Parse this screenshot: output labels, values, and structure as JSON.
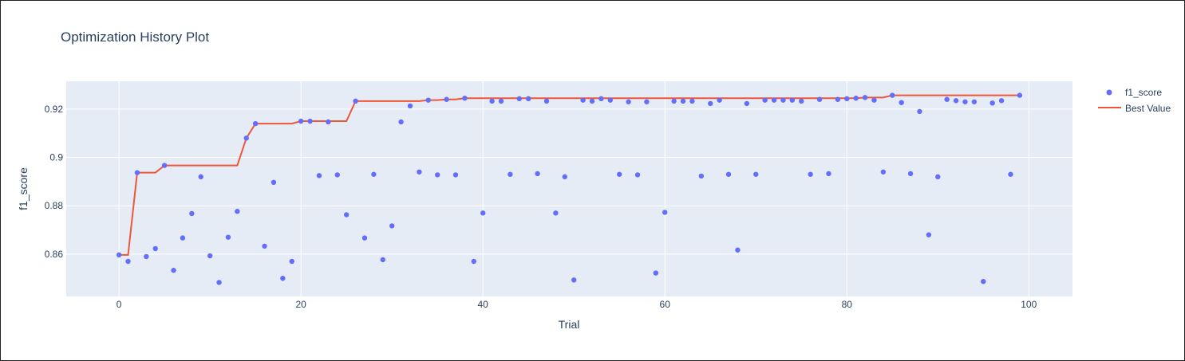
{
  "chart_data": {
    "type": "scatter",
    "title": "Optimization History Plot",
    "xlabel": "Trial",
    "ylabel": "f1_score",
    "xlim": [
      -5.8,
      104.8
    ],
    "ylim": [
      0.8425,
      0.9315
    ],
    "xticks": [
      0,
      20,
      40,
      60,
      80,
      100
    ],
    "yticks": [
      0.86,
      0.88,
      0.9,
      0.92
    ],
    "ytick_labels": [
      "0.86",
      "0.88",
      "0.9",
      "0.92"
    ],
    "grid": true,
    "legend_position": "top-right",
    "colors": {
      "scatter": "#636efa",
      "line": "#ef553b",
      "plot_bg": "#e5ecf6"
    },
    "series": [
      {
        "name": "f1_score",
        "kind": "markers",
        "x": [
          0,
          1,
          2,
          3,
          4,
          5,
          6,
          7,
          8,
          9,
          10,
          11,
          12,
          13,
          14,
          15,
          16,
          17,
          18,
          19,
          20,
          21,
          22,
          23,
          24,
          25,
          26,
          27,
          28,
          29,
          30,
          31,
          32,
          33,
          34,
          35,
          36,
          37,
          38,
          39,
          40,
          41,
          42,
          43,
          44,
          45,
          46,
          47,
          48,
          49,
          50,
          51,
          52,
          53,
          54,
          55,
          56,
          57,
          58,
          59,
          60,
          61,
          62,
          63,
          64,
          65,
          66,
          67,
          68,
          69,
          70,
          71,
          72,
          73,
          74,
          75,
          76,
          77,
          78,
          79,
          80,
          81,
          82,
          83,
          84,
          85,
          86,
          87,
          88,
          89,
          90,
          91,
          92,
          93,
          94,
          95,
          96,
          97,
          98,
          99
        ],
        "y": [
          0.8597,
          0.857,
          0.8937,
          0.859,
          0.8623,
          0.8967,
          0.8533,
          0.8667,
          0.8768,
          0.892,
          0.8593,
          0.8483,
          0.867,
          0.8777,
          0.908,
          0.914,
          0.8633,
          0.8897,
          0.85,
          0.857,
          0.915,
          0.915,
          0.8925,
          0.9147,
          0.8928,
          0.8763,
          0.9233,
          0.8667,
          0.893,
          0.8577,
          0.8717,
          0.9147,
          0.9213,
          0.894,
          0.9237,
          0.8928,
          0.924,
          0.8928,
          0.9245,
          0.857,
          0.877,
          0.9233,
          0.9233,
          0.893,
          0.9243,
          0.9243,
          0.8933,
          0.9233,
          0.877,
          0.892,
          0.8493,
          0.9237,
          0.9233,
          0.9243,
          0.9237,
          0.893,
          0.923,
          0.8928,
          0.923,
          0.8522,
          0.8773,
          0.9233,
          0.9233,
          0.9233,
          0.8923,
          0.9223,
          0.9237,
          0.893,
          0.8617,
          0.9223,
          0.893,
          0.9237,
          0.9237,
          0.9237,
          0.9237,
          0.9233,
          0.893,
          0.924,
          0.8933,
          0.924,
          0.9243,
          0.9245,
          0.9248,
          0.9237,
          0.894,
          0.9257,
          0.9227,
          0.8933,
          0.919,
          0.868,
          0.892,
          0.924,
          0.9235,
          0.923,
          0.923,
          0.8487,
          0.9225,
          0.9235,
          0.893,
          0.9257
        ]
      },
      {
        "name": "Best Value",
        "kind": "line",
        "x": [
          0,
          1,
          2,
          3,
          4,
          5,
          6,
          7,
          8,
          9,
          10,
          11,
          12,
          13,
          14,
          15,
          16,
          17,
          18,
          19,
          20,
          21,
          22,
          23,
          24,
          25,
          26,
          27,
          28,
          29,
          30,
          31,
          32,
          33,
          34,
          35,
          36,
          37,
          38,
          39,
          40,
          41,
          42,
          43,
          44,
          45,
          46,
          47,
          48,
          49,
          50,
          51,
          52,
          53,
          54,
          55,
          56,
          57,
          58,
          59,
          60,
          61,
          62,
          63,
          64,
          65,
          66,
          67,
          68,
          69,
          70,
          71,
          72,
          73,
          74,
          75,
          76,
          77,
          78,
          79,
          80,
          81,
          82,
          83,
          84,
          85,
          86,
          87,
          88,
          89,
          90,
          91,
          92,
          93,
          94,
          95,
          96,
          97,
          98,
          99
        ],
        "y": [
          0.8597,
          0.8597,
          0.8937,
          0.8937,
          0.8937,
          0.8967,
          0.8967,
          0.8967,
          0.8967,
          0.8967,
          0.8967,
          0.8967,
          0.8967,
          0.8967,
          0.908,
          0.914,
          0.914,
          0.914,
          0.914,
          0.914,
          0.915,
          0.915,
          0.915,
          0.915,
          0.915,
          0.915,
          0.9233,
          0.9233,
          0.9233,
          0.9233,
          0.9233,
          0.9233,
          0.9233,
          0.9233,
          0.9237,
          0.9237,
          0.924,
          0.924,
          0.9245,
          0.9245,
          0.9245,
          0.9245,
          0.9245,
          0.9245,
          0.9245,
          0.9245,
          0.9245,
          0.9245,
          0.9245,
          0.9245,
          0.9245,
          0.9245,
          0.9245,
          0.9245,
          0.9245,
          0.9245,
          0.9245,
          0.9245,
          0.9245,
          0.9245,
          0.9245,
          0.9245,
          0.9245,
          0.9245,
          0.9245,
          0.9245,
          0.9245,
          0.9245,
          0.9245,
          0.9245,
          0.9245,
          0.9245,
          0.9245,
          0.9245,
          0.9245,
          0.9245,
          0.9245,
          0.9245,
          0.9245,
          0.9245,
          0.9245,
          0.9245,
          0.9248,
          0.9248,
          0.9248,
          0.9257,
          0.9257,
          0.9257,
          0.9257,
          0.9257,
          0.9257,
          0.9257,
          0.9257,
          0.9257,
          0.9257,
          0.9257,
          0.9257,
          0.9257,
          0.9257,
          0.9257
        ]
      }
    ]
  }
}
